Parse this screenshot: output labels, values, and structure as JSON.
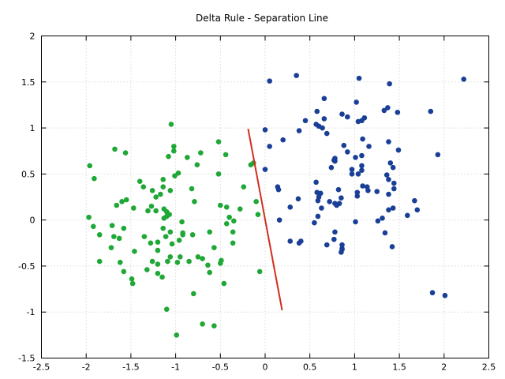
{
  "chart_data": {
    "type": "scatter",
    "title": "Delta Rule - Separation Line",
    "xlabel": "",
    "ylabel": "",
    "xlim": [
      -2.5,
      2.5
    ],
    "ylim": [
      -1.5,
      2
    ],
    "x_ticks": [
      -2.5,
      -2,
      -1.5,
      -1,
      -0.5,
      0,
      0.5,
      1,
      1.5,
      2,
      2.5
    ],
    "y_ticks": [
      -1.5,
      -1,
      -0.5,
      0,
      0.5,
      1,
      1.5,
      2
    ],
    "grid": true,
    "legend": "none",
    "series": [
      {
        "color": "#1fa836",
        "kind": "points",
        "points": [
          [
            -1.05,
            1.04
          ],
          [
            -1.68,
            0.77
          ],
          [
            -1.56,
            0.73
          ],
          [
            -1.02,
            0.8
          ],
          [
            -1.02,
            0.75
          ],
          [
            -1.08,
            0.69
          ],
          [
            -0.72,
            0.73
          ],
          [
            -0.52,
            0.85
          ],
          [
            -0.44,
            0.71
          ],
          [
            -0.87,
            0.68
          ],
          [
            -1.96,
            0.59
          ],
          [
            -0.97,
            0.51
          ],
          [
            -1.01,
            0.48
          ],
          [
            -0.76,
            0.6
          ],
          [
            -0.52,
            0.5
          ],
          [
            -0.16,
            0.6
          ],
          [
            -0.13,
            0.62
          ],
          [
            -1.91,
            0.45
          ],
          [
            -1.4,
            0.42
          ],
          [
            -1.14,
            0.44
          ],
          [
            -1.36,
            0.36
          ],
          [
            -1.26,
            0.32
          ],
          [
            -1.14,
            0.36
          ],
          [
            -1.06,
            0.32
          ],
          [
            -0.82,
            0.34
          ],
          [
            -1.17,
            0.28
          ],
          [
            -1.55,
            0.22
          ],
          [
            -0.24,
            0.36
          ],
          [
            -0.1,
            0.2
          ],
          [
            -1.66,
            0.16
          ],
          [
            -1.47,
            0.13
          ],
          [
            -1.27,
            0.15
          ],
          [
            -0.79,
            0.2
          ],
          [
            -0.5,
            0.16
          ],
          [
            -0.43,
            0.14
          ],
          [
            -1.13,
            0.12
          ],
          [
            -1.22,
            0.1
          ],
          [
            -1.31,
            0.1
          ],
          [
            -1.1,
            0.09
          ],
          [
            -1.07,
            0.06
          ],
          [
            -1.1,
            0.04
          ],
          [
            -1.13,
            0.02
          ],
          [
            -1.97,
            0.03
          ],
          [
            -0.08,
            0.06
          ],
          [
            -0.4,
            0.03
          ],
          [
            -0.35,
            -0.01
          ],
          [
            -0.93,
            -0.02
          ],
          [
            -1.71,
            -0.06
          ],
          [
            -1.92,
            -0.07
          ],
          [
            -1.58,
            -0.09
          ],
          [
            -1.14,
            -0.09
          ],
          [
            -1.06,
            -0.13
          ],
          [
            -0.92,
            -0.14
          ],
          [
            -1.35,
            -0.18
          ],
          [
            -0.62,
            -0.13
          ],
          [
            -0.36,
            -0.13
          ],
          [
            -0.43,
            -0.04
          ],
          [
            -1.85,
            -0.16
          ],
          [
            -1.69,
            -0.18
          ],
          [
            -1.63,
            -0.2
          ],
          [
            -1.11,
            -0.18
          ],
          [
            -0.92,
            -0.16
          ],
          [
            -0.96,
            -0.22
          ],
          [
            -0.81,
            -0.16
          ],
          [
            -1.28,
            -0.25
          ],
          [
            -1.2,
            -0.24
          ],
          [
            -1.04,
            -0.26
          ],
          [
            -1.72,
            -0.3
          ],
          [
            -1.46,
            -0.34
          ],
          [
            -1.2,
            -0.33
          ],
          [
            -0.95,
            -0.4
          ],
          [
            -0.75,
            -0.4
          ],
          [
            -0.57,
            -0.3
          ],
          [
            -0.36,
            -0.25
          ],
          [
            -1.85,
            -0.45
          ],
          [
            -1.62,
            -0.46
          ],
          [
            -1.26,
            -0.45
          ],
          [
            -1.2,
            -0.48
          ],
          [
            -1.06,
            -0.4
          ],
          [
            -1.09,
            -0.45
          ],
          [
            -0.98,
            -0.46
          ],
          [
            -0.85,
            -0.45
          ],
          [
            -0.7,
            -0.42
          ],
          [
            -0.64,
            -0.49
          ],
          [
            -0.5,
            -0.47
          ],
          [
            -0.49,
            -0.44
          ],
          [
            -1.32,
            -0.54
          ],
          [
            -1.2,
            -0.58
          ],
          [
            -1.15,
            -0.62
          ],
          [
            -1.58,
            -0.56
          ],
          [
            -1.49,
            -0.64
          ],
          [
            -1.48,
            -0.69
          ],
          [
            -0.62,
            -0.57
          ],
          [
            -0.46,
            -0.69
          ],
          [
            -0.06,
            -0.56
          ],
          [
            -0.8,
            -0.8
          ],
          [
            -1.1,
            -0.97
          ],
          [
            -0.7,
            -1.13
          ],
          [
            -0.57,
            -1.15
          ],
          [
            -0.99,
            -1.25
          ],
          [
            -1.6,
            0.2
          ],
          [
            -1.22,
            0.25
          ],
          [
            -0.28,
            0.12
          ]
        ]
      },
      {
        "color": "#1a3f96",
        "kind": "points",
        "points": [
          [
            0.35,
            1.57
          ],
          [
            0.05,
            1.51
          ],
          [
            1.05,
            1.54
          ],
          [
            1.39,
            1.48
          ],
          [
            2.22,
            1.53
          ],
          [
            0.66,
            1.32
          ],
          [
            1.02,
            1.28
          ],
          [
            1.37,
            1.22
          ],
          [
            1.33,
            1.19
          ],
          [
            1.48,
            1.17
          ],
          [
            1.85,
            1.18
          ],
          [
            0.58,
            1.18
          ],
          [
            0.86,
            1.15
          ],
          [
            0.92,
            1.12
          ],
          [
            1.11,
            1.11
          ],
          [
            1.04,
            1.07
          ],
          [
            1.08,
            1.08
          ],
          [
            0.66,
            1.1
          ],
          [
            0.45,
            1.08
          ],
          [
            0.57,
            1.04
          ],
          [
            0.6,
            1.02
          ],
          [
            0.64,
            1.0
          ],
          [
            0.38,
            0.97
          ],
          [
            0.0,
            0.98
          ],
          [
            0.69,
            0.94
          ],
          [
            0.2,
            0.87
          ],
          [
            1.09,
            0.88
          ],
          [
            1.38,
            0.85
          ],
          [
            0.05,
            0.8
          ],
          [
            0.88,
            0.81
          ],
          [
            1.16,
            0.8
          ],
          [
            1.49,
            0.76
          ],
          [
            1.93,
            0.71
          ],
          [
            0.92,
            0.74
          ],
          [
            1.08,
            0.7
          ],
          [
            1.01,
            0.68
          ],
          [
            0.78,
            0.67
          ],
          [
            0.77,
            0.65
          ],
          [
            0.78,
            0.64
          ],
          [
            1.4,
            0.62
          ],
          [
            0.74,
            0.57
          ],
          [
            1.08,
            0.59
          ],
          [
            1.43,
            0.57
          ],
          [
            0.0,
            0.55
          ],
          [
            0.97,
            0.55
          ],
          [
            1.08,
            0.54
          ],
          [
            1.04,
            0.5
          ],
          [
            0.97,
            0.5
          ],
          [
            1.36,
            0.49
          ],
          [
            0.57,
            0.41
          ],
          [
            1.38,
            0.44
          ],
          [
            0.14,
            0.36
          ],
          [
            1.09,
            0.37
          ],
          [
            1.14,
            0.36
          ],
          [
            0.15,
            0.33
          ],
          [
            0.82,
            0.33
          ],
          [
            1.15,
            0.32
          ],
          [
            1.44,
            0.34
          ],
          [
            1.38,
            0.28
          ],
          [
            1.25,
            0.31
          ],
          [
            0.58,
            0.3
          ],
          [
            0.62,
            0.29
          ],
          [
            0.6,
            0.25
          ],
          [
            1.03,
            0.26
          ],
          [
            0.85,
            0.24
          ],
          [
            0.37,
            0.23
          ],
          [
            0.59,
            0.21
          ],
          [
            0.72,
            0.2
          ],
          [
            0.78,
            0.18
          ],
          [
            0.8,
            0.16
          ],
          [
            0.83,
            0.18
          ],
          [
            1.67,
            0.21
          ],
          [
            0.28,
            0.14
          ],
          [
            0.63,
            0.13
          ],
          [
            1.38,
            0.11
          ],
          [
            1.43,
            0.13
          ],
          [
            1.7,
            0.11
          ],
          [
            0.59,
            0.04
          ],
          [
            0.16,
            0.0
          ],
          [
            1.59,
            0.05
          ],
          [
            1.31,
            0.02
          ],
          [
            1.26,
            -0.01
          ],
          [
            0.55,
            -0.03
          ],
          [
            0.78,
            -0.13
          ],
          [
            1.01,
            -0.02
          ],
          [
            0.4,
            -0.23
          ],
          [
            0.38,
            -0.25
          ],
          [
            0.28,
            -0.23
          ],
          [
            0.69,
            -0.27
          ],
          [
            0.77,
            -0.21
          ],
          [
            1.34,
            -0.14
          ],
          [
            0.86,
            -0.27
          ],
          [
            0.86,
            -0.31
          ],
          [
            0.85,
            -0.35
          ],
          [
            0.86,
            -0.32
          ],
          [
            1.42,
            -0.29
          ],
          [
            1.87,
            -0.79
          ],
          [
            2.01,
            -0.82
          ],
          [
            1.03,
            0.3
          ],
          [
            1.44,
            0.4
          ]
        ]
      },
      {
        "color": "#d22d1e",
        "kind": "line",
        "points": [
          [
            -0.19,
            0.99
          ],
          [
            0.19,
            -0.98
          ]
        ]
      }
    ]
  }
}
